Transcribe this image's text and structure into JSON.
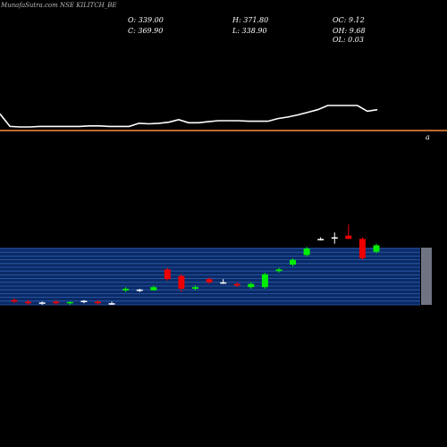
{
  "header": {
    "title": "MunafaSutra.com NSE KILITCH_BE",
    "o_label": "O: 339.00",
    "h_label": "H: 371.80",
    "oc_label": "OC: 9.12",
    "c_label": "C: 369.90",
    "l_label": "L: 338.90",
    "oh_label": "OH: 9.68",
    "ol_label": "OL: 0.03"
  },
  "colors": {
    "background": "#000000",
    "line": "#ffffff",
    "divider": "#ff8c3a",
    "panel_bg": "#0a2a66",
    "panel_grid": "#2f5fb0",
    "bull": "#00ee00",
    "bear": "#ee0000",
    "flat": "#ffffff"
  },
  "chart_data": [
    {
      "type": "line",
      "series": [
        {
          "values": [
            372,
            348,
            347,
            347,
            348,
            348,
            348,
            348,
            348,
            349,
            349,
            348,
            348,
            348,
            354,
            353,
            354,
            356,
            361,
            355,
            355,
            357,
            359,
            359,
            359,
            358,
            358,
            358,
            363,
            366,
            370,
            375,
            380,
            388,
            388,
            388,
            388,
            377,
            380
          ]
        }
      ],
      "annotation": "a"
    },
    {
      "type": "bar",
      "subtype": "candlestick",
      "candles": [
        {
          "o": 333,
          "h": 334,
          "l": 331,
          "c": 332
        },
        {
          "o": 332,
          "h": 333,
          "l": 330,
          "c": 331
        },
        {
          "o": 331,
          "h": 332,
          "l": 330,
          "c": 331.5
        },
        {
          "o": 332,
          "h": 333,
          "l": 330,
          "c": 331
        },
        {
          "o": 331,
          "h": 332,
          "l": 330,
          "c": 331.8
        },
        {
          "o": 332,
          "h": 333,
          "l": 331,
          "c": 332.5
        },
        {
          "o": 332,
          "h": 333,
          "l": 330,
          "c": 331
        },
        {
          "o": 331,
          "h": 332,
          "l": 330,
          "c": 331
        },
        {
          "o": 339,
          "h": 341,
          "l": 338,
          "c": 340
        },
        {
          "o": 339,
          "h": 340,
          "l": 338,
          "c": 339.5
        },
        {
          "o": 339,
          "h": 342,
          "l": 339,
          "c": 341
        },
        {
          "o": 352,
          "h": 353,
          "l": 345,
          "c": 346
        },
        {
          "o": 348,
          "h": 349,
          "l": 338,
          "c": 340
        },
        {
          "o": 340,
          "h": 342,
          "l": 339,
          "c": 341
        },
        {
          "o": 346,
          "h": 347,
          "l": 343,
          "c": 344
        },
        {
          "o": 344,
          "h": 346,
          "l": 343,
          "c": 344
        },
        {
          "o": 343,
          "h": 344,
          "l": 341,
          "c": 342
        },
        {
          "o": 341,
          "h": 344,
          "l": 340,
          "c": 343
        },
        {
          "o": 341,
          "h": 350,
          "l": 340,
          "c": 349
        },
        {
          "o": 351,
          "h": 353,
          "l": 350,
          "c": 352
        },
        {
          "o": 355,
          "h": 359,
          "l": 354,
          "c": 358
        },
        {
          "o": 361,
          "h": 366,
          "l": 360,
          "c": 365
        },
        {
          "o": 371,
          "h": 372,
          "l": 370,
          "c": 371
        },
        {
          "o": 372,
          "h": 375,
          "l": 368,
          "c": 372
        },
        {
          "o": 373,
          "h": 380,
          "l": 371,
          "c": 371
        },
        {
          "o": 371,
          "h": 372,
          "l": 358,
          "c": 359
        },
        {
          "o": 363,
          "h": 368,
          "l": 362,
          "c": 367
        }
      ]
    }
  ]
}
